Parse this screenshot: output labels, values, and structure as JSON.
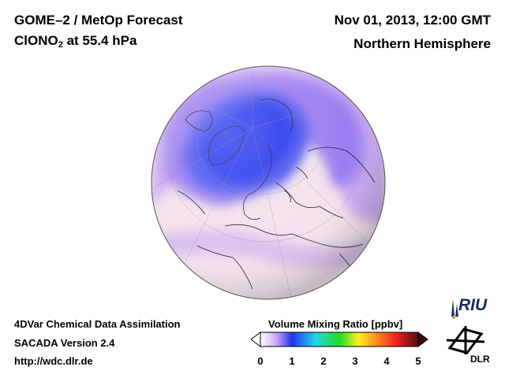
{
  "header": {
    "product": "GOME–2 / MetOp Forecast",
    "species": "ClONO",
    "species_sub": "2",
    "level": " at 55.4 hPa",
    "datetime": "Nov 01, 2013, 12:00 GMT",
    "region": "Northern Hemisphere"
  },
  "footer": {
    "line1": "4DVar Chemical Data Assimilation",
    "line2": "SACADA Version 2.4",
    "line3": "http://wdc.dlr.de"
  },
  "colorbar": {
    "title": "Volume Mixing Ratio [ppbv]",
    "ticks": [
      "0",
      "1",
      "2",
      "3",
      "4",
      "5"
    ],
    "min": 0,
    "max": 5
  },
  "logos": {
    "riu": "RIU",
    "dlr": "DLR"
  },
  "map": {
    "projection": "orthographic",
    "center": "north-pole",
    "high_value_color": "#2233ee",
    "mid_value_color": "#9a7ef0",
    "low_value_color": "#f6e6ee"
  }
}
